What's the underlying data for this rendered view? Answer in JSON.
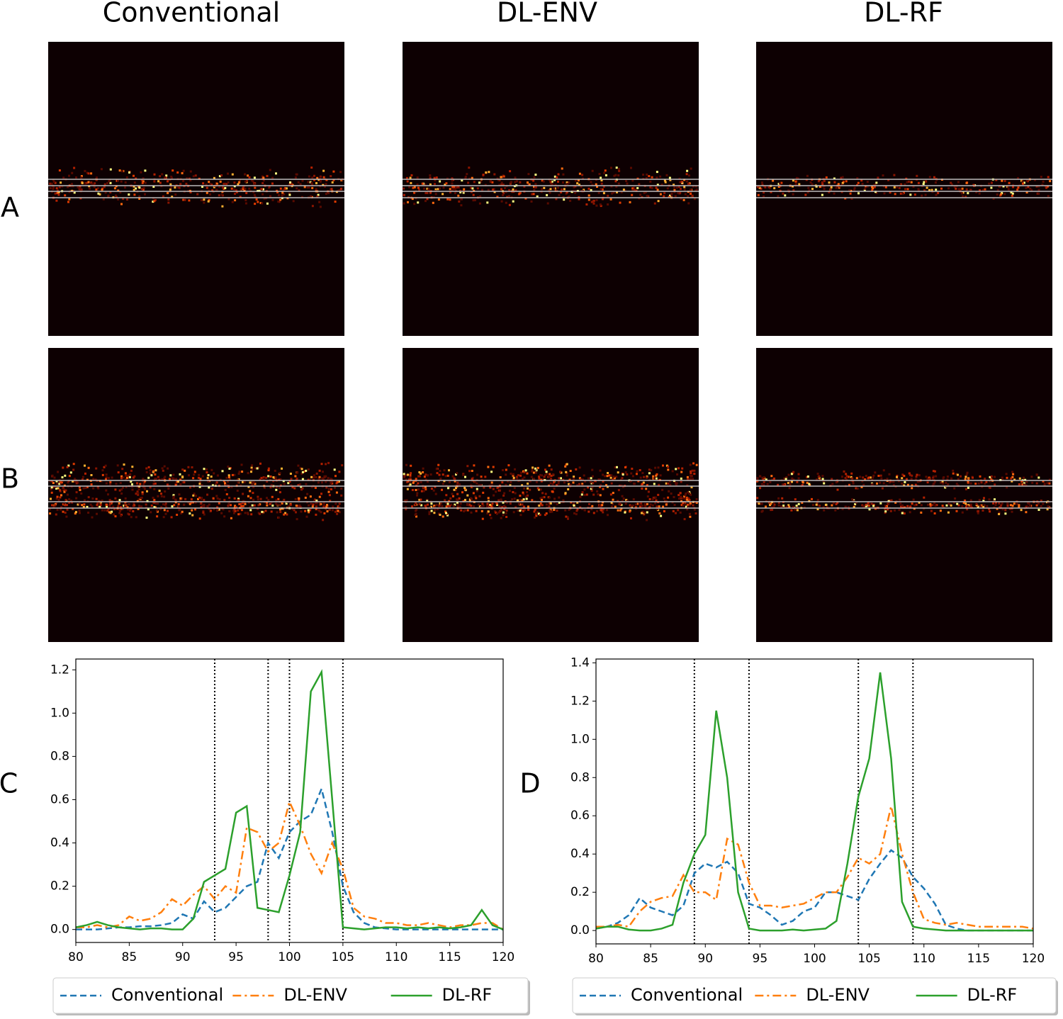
{
  "figure": {
    "columns": [
      "Conventional",
      "DL-ENV",
      "DL-RF"
    ],
    "rows": [
      "A",
      "B"
    ]
  },
  "chart_data": [
    {
      "type": "line",
      "label": "C",
      "x": [
        80,
        81,
        82,
        83,
        84,
        85,
        86,
        87,
        88,
        89,
        90,
        91,
        92,
        93,
        94,
        95,
        96,
        97,
        98,
        99,
        100,
        101,
        102,
        103,
        104,
        105,
        106,
        107,
        108,
        109,
        110,
        111,
        112,
        113,
        114,
        115,
        116,
        117,
        118,
        119,
        120
      ],
      "series": [
        {
          "name": "Conventional",
          "color": "#1f77b4",
          "dash": "dashed",
          "values": [
            0,
            0,
            0,
            0.005,
            0.01,
            0.01,
            0.015,
            0.015,
            0.02,
            0.03,
            0.07,
            0.05,
            0.13,
            0.08,
            0.1,
            0.15,
            0.2,
            0.22,
            0.4,
            0.33,
            0.45,
            0.5,
            0.53,
            0.65,
            0.45,
            0.2,
            0.08,
            0.03,
            0.01,
            0.005,
            0,
            0,
            0,
            0,
            0,
            0,
            0,
            0,
            0,
            0,
            0
          ]
        },
        {
          "name": "DL-ENV",
          "color": "#ff7f0e",
          "dash": "dashdot",
          "values": [
            0.01,
            0.01,
            0.02,
            0.01,
            0.02,
            0.06,
            0.04,
            0.05,
            0.08,
            0.14,
            0.11,
            0.16,
            0.2,
            0.14,
            0.2,
            0.17,
            0.47,
            0.45,
            0.36,
            0.4,
            0.59,
            0.48,
            0.35,
            0.26,
            0.4,
            0.28,
            0.1,
            0.06,
            0.05,
            0.03,
            0.03,
            0.02,
            0.02,
            0.03,
            0.02,
            0.01,
            0.02,
            0.02,
            0.03,
            0.03,
            0
          ]
        },
        {
          "name": "DL-RF",
          "color": "#2ca02c",
          "dash": "solid",
          "values": [
            0.01,
            0.02,
            0.035,
            0.02,
            0.01,
            0.005,
            0,
            0.005,
            0.005,
            0,
            0,
            0.05,
            0.22,
            0.25,
            0.28,
            0.54,
            0.57,
            0.1,
            0.09,
            0.08,
            0.25,
            0.45,
            1.1,
            1.19,
            0.6,
            0.01,
            0.005,
            0,
            0.005,
            0.01,
            0.01,
            0.005,
            0.01,
            0.005,
            0.01,
            0.005,
            0.01,
            0.02,
            0.09,
            0.02,
            0
          ]
        }
      ],
      "vlines": [
        93,
        98,
        100,
        105
      ],
      "xlim": [
        80,
        120
      ],
      "xticks": [
        80,
        85,
        90,
        95,
        100,
        105,
        110,
        115,
        120
      ],
      "ylim": [
        -0.06,
        1.25
      ],
      "yticks": [
        {
          "value": 0,
          "label": "0.0"
        },
        {
          "value": 0.2,
          "label": "0.2"
        },
        {
          "value": 0.4,
          "label": "0.4"
        },
        {
          "value": 0.6,
          "label": "0.6"
        },
        {
          "value": 0.8,
          "label": "0.8"
        },
        {
          "value": 1,
          "label": "1.0"
        },
        {
          "value": 1.2,
          "label": "1.2"
        }
      ],
      "legend": "below"
    },
    {
      "type": "line",
      "label": "D",
      "x": [
        80,
        81,
        82,
        83,
        84,
        85,
        86,
        87,
        88,
        89,
        90,
        91,
        92,
        93,
        94,
        95,
        96,
        97,
        98,
        99,
        100,
        101,
        102,
        103,
        104,
        105,
        106,
        107,
        108,
        109,
        110,
        111,
        112,
        113,
        114,
        115,
        116,
        117,
        118,
        119,
        120
      ],
      "series": [
        {
          "name": "Conventional",
          "color": "#1f77b4",
          "dash": "dashed",
          "values": [
            0.01,
            0.02,
            0.04,
            0.08,
            0.17,
            0.12,
            0.1,
            0.08,
            0.13,
            0.3,
            0.35,
            0.33,
            0.36,
            0.3,
            0.14,
            0.12,
            0.08,
            0.03,
            0.05,
            0.1,
            0.12,
            0.2,
            0.2,
            0.18,
            0.16,
            0.27,
            0.35,
            0.42,
            0.38,
            0.28,
            0.22,
            0.14,
            0.03,
            0.01,
            0,
            0,
            0,
            0,
            0,
            0,
            0
          ]
        },
        {
          "name": "DL-ENV",
          "color": "#ff7f0e",
          "dash": "dashdot",
          "values": [
            0.02,
            0.02,
            0.03,
            0.02,
            0.1,
            0.15,
            0.17,
            0.18,
            0.29,
            0.2,
            0.2,
            0.16,
            0.48,
            0.45,
            0.25,
            0.13,
            0.13,
            0.12,
            0.13,
            0.14,
            0.17,
            0.2,
            0.2,
            0.28,
            0.38,
            0.35,
            0.4,
            0.65,
            0.4,
            0.2,
            0.06,
            0.04,
            0.03,
            0.04,
            0.03,
            0.02,
            0.02,
            0.02,
            0.02,
            0.02,
            0.01
          ]
        },
        {
          "name": "DL-RF",
          "color": "#2ca02c",
          "dash": "solid",
          "values": [
            0.01,
            0.02,
            0.02,
            0.005,
            0,
            0,
            0.01,
            0.03,
            0.25,
            0.4,
            0.5,
            1.15,
            0.8,
            0.2,
            0.01,
            0,
            0,
            0,
            0.005,
            0,
            0.005,
            0.01,
            0.05,
            0.35,
            0.7,
            0.9,
            1.35,
            0.9,
            0.15,
            0.02,
            0.01,
            0.005,
            0,
            0,
            0,
            0,
            0,
            0,
            0,
            0,
            0
          ]
        }
      ],
      "vlines": [
        89,
        94,
        104,
        109
      ],
      "xlim": [
        80,
        120
      ],
      "xticks": [
        80,
        85,
        90,
        95,
        100,
        105,
        110,
        115,
        120
      ],
      "ylim": [
        -0.07,
        1.42
      ],
      "yticks": [
        {
          "value": 0,
          "label": "0.0"
        },
        {
          "value": 0.2,
          "label": "0.2"
        },
        {
          "value": 0.4,
          "label": "0.4"
        },
        {
          "value": 0.6,
          "label": "0.6"
        },
        {
          "value": 0.8,
          "label": "0.8"
        },
        {
          "value": 1,
          "label": "1.0"
        },
        {
          "value": 1.2,
          "label": "1.2"
        },
        {
          "value": 1.4,
          "label": "1.4"
        }
      ],
      "legend": "below"
    }
  ]
}
